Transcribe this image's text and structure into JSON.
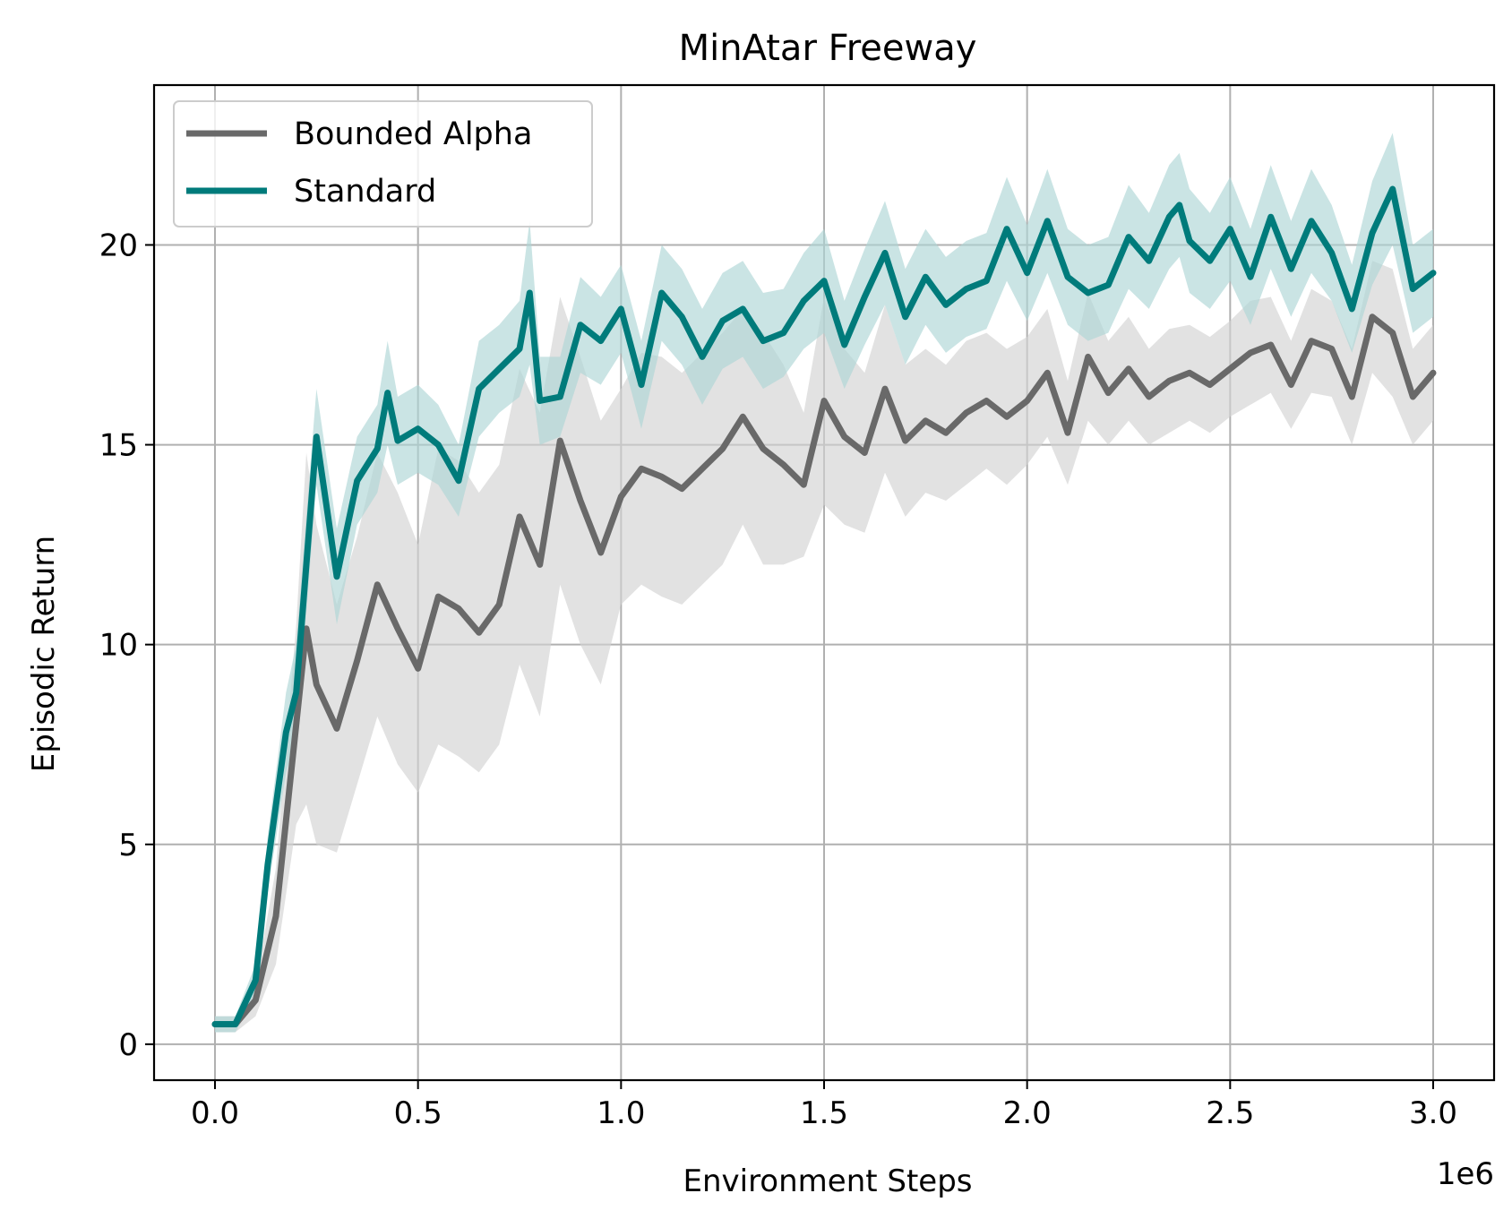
{
  "chart_data": {
    "type": "line",
    "title": "MinAtar Freeway",
    "xlabel": "Environment Steps",
    "ylabel": "Episodic Return",
    "x_offset_text": "1e6",
    "xlim": [
      -0.15,
      3.15
    ],
    "ylim": [
      -0.9,
      24.0
    ],
    "x_ticks": [
      0.0,
      0.5,
      1.0,
      1.5,
      2.0,
      2.5,
      3.0
    ],
    "x_tick_labels": [
      "0.0",
      "0.5",
      "1.0",
      "1.5",
      "2.0",
      "2.5",
      "3.0"
    ],
    "y_ticks": [
      0,
      5,
      10,
      15,
      20
    ],
    "y_tick_labels": [
      "0",
      "5",
      "10",
      "15",
      "20"
    ],
    "grid": true,
    "legend_position": "upper left",
    "series": [
      {
        "name": "Bounded Alpha",
        "color": "#696969",
        "band_color": "#d3d3d3",
        "x": [
          0.0,
          0.05,
          0.1,
          0.15,
          0.2,
          0.225,
          0.25,
          0.3,
          0.35,
          0.4,
          0.45,
          0.5,
          0.55,
          0.6,
          0.65,
          0.7,
          0.75,
          0.8,
          0.85,
          0.9,
          0.95,
          1.0,
          1.05,
          1.1,
          1.15,
          1.2,
          1.25,
          1.3,
          1.35,
          1.4,
          1.45,
          1.5,
          1.55,
          1.6,
          1.65,
          1.7,
          1.75,
          1.8,
          1.85,
          1.9,
          1.95,
          2.0,
          2.05,
          2.1,
          2.15,
          2.2,
          2.25,
          2.3,
          2.35,
          2.4,
          2.45,
          2.5,
          2.55,
          2.6,
          2.65,
          2.7,
          2.75,
          2.8,
          2.85,
          2.9,
          2.95,
          3.0
        ],
        "values": [
          0.5,
          0.5,
          1.1,
          3.2,
          8.0,
          10.4,
          9.0,
          7.9,
          9.6,
          11.5,
          10.4,
          9.4,
          11.2,
          10.9,
          10.3,
          11.0,
          13.2,
          12.0,
          15.1,
          13.6,
          12.3,
          13.7,
          14.4,
          14.2,
          13.9,
          14.4,
          14.9,
          15.7,
          14.9,
          14.5,
          14.0,
          16.1,
          15.2,
          14.8,
          16.4,
          15.1,
          15.6,
          15.3,
          15.8,
          16.1,
          15.7,
          16.1,
          16.8,
          15.3,
          17.2,
          16.3,
          16.9,
          16.2,
          16.6,
          16.8,
          16.5,
          16.9,
          17.3,
          17.5,
          16.5,
          17.6,
          17.4,
          16.2,
          18.2,
          17.8,
          16.2,
          16.8
        ],
        "band_lower": [
          0.3,
          0.3,
          0.7,
          2.0,
          5.5,
          6.0,
          5.0,
          4.8,
          6.5,
          8.2,
          7.0,
          6.3,
          7.5,
          7.2,
          6.8,
          7.5,
          9.5,
          8.2,
          11.5,
          10.0,
          9.0,
          11.0,
          11.5,
          11.2,
          11.0,
          11.5,
          12.0,
          13.0,
          12.0,
          12.0,
          12.2,
          13.5,
          13.0,
          12.8,
          14.3,
          13.2,
          13.8,
          13.6,
          14.0,
          14.4,
          14.0,
          14.5,
          15.2,
          14.0,
          15.6,
          15.0,
          15.6,
          15.0,
          15.3,
          15.6,
          15.3,
          15.7,
          16.0,
          16.3,
          15.4,
          16.3,
          16.2,
          15.0,
          16.8,
          16.2,
          15.0,
          15.6
        ],
        "band_upper": [
          0.7,
          0.7,
          1.5,
          4.4,
          10.5,
          14.8,
          13.0,
          11.0,
          12.7,
          14.8,
          13.8,
          12.5,
          14.9,
          14.6,
          13.8,
          14.5,
          16.9,
          15.8,
          18.7,
          17.2,
          15.6,
          16.4,
          17.3,
          17.2,
          16.8,
          17.3,
          17.8,
          18.4,
          17.8,
          17.0,
          15.8,
          18.7,
          17.4,
          16.8,
          18.5,
          17.0,
          17.4,
          17.0,
          17.6,
          17.8,
          17.4,
          17.7,
          18.4,
          16.6,
          18.8,
          17.6,
          18.2,
          17.4,
          17.9,
          18.0,
          17.7,
          18.1,
          18.6,
          18.7,
          17.6,
          18.9,
          18.6,
          17.4,
          19.6,
          19.4,
          17.4,
          18.0
        ]
      },
      {
        "name": "Standard",
        "color": "#007b7b",
        "band_color": "#aed6d6",
        "x": [
          0.0,
          0.05,
          0.1,
          0.13,
          0.175,
          0.2,
          0.25,
          0.3,
          0.35,
          0.4,
          0.425,
          0.45,
          0.5,
          0.55,
          0.6,
          0.65,
          0.7,
          0.75,
          0.775,
          0.8,
          0.85,
          0.9,
          0.95,
          1.0,
          1.05,
          1.1,
          1.15,
          1.2,
          1.25,
          1.3,
          1.35,
          1.4,
          1.45,
          1.5,
          1.55,
          1.6,
          1.65,
          1.7,
          1.75,
          1.8,
          1.85,
          1.9,
          1.95,
          2.0,
          2.05,
          2.1,
          2.15,
          2.2,
          2.25,
          2.3,
          2.35,
          2.375,
          2.4,
          2.45,
          2.5,
          2.55,
          2.6,
          2.65,
          2.7,
          2.75,
          2.8,
          2.85,
          2.9,
          2.95,
          3.0
        ],
        "values": [
          0.5,
          0.5,
          1.6,
          4.5,
          7.8,
          8.8,
          15.2,
          11.7,
          14.1,
          14.9,
          16.3,
          15.1,
          15.4,
          15.0,
          14.1,
          16.4,
          16.9,
          17.4,
          18.8,
          16.1,
          16.2,
          18.0,
          17.6,
          18.4,
          16.5,
          18.8,
          18.2,
          17.2,
          18.1,
          18.4,
          17.6,
          17.8,
          18.6,
          19.1,
          17.5,
          18.7,
          19.8,
          18.2,
          19.2,
          18.5,
          18.9,
          19.1,
          20.4,
          19.3,
          20.6,
          19.2,
          18.8,
          19.0,
          20.2,
          19.6,
          20.7,
          21.0,
          20.1,
          19.6,
          20.4,
          19.2,
          20.7,
          19.4,
          20.6,
          19.8,
          18.4,
          20.3,
          21.4,
          18.9,
          19.3
        ],
        "band_lower": [
          0.3,
          0.3,
          1.2,
          3.8,
          6.8,
          7.6,
          14.0,
          10.5,
          13.0,
          13.8,
          15.0,
          14.0,
          14.3,
          14.0,
          13.2,
          15.2,
          15.8,
          16.2,
          17.0,
          15.0,
          15.2,
          16.8,
          16.5,
          17.3,
          15.4,
          17.6,
          17.0,
          16.0,
          16.9,
          17.2,
          16.4,
          16.7,
          17.4,
          17.8,
          16.4,
          17.5,
          18.5,
          17.0,
          18.0,
          17.3,
          17.7,
          17.9,
          19.1,
          18.1,
          19.3,
          18.0,
          17.6,
          17.8,
          18.9,
          18.4,
          19.4,
          19.7,
          18.8,
          18.4,
          19.1,
          18.0,
          19.4,
          18.2,
          19.3,
          18.6,
          17.3,
          19.0,
          20.0,
          17.8,
          18.2
        ],
        "band_upper": [
          0.7,
          0.7,
          2.0,
          5.2,
          8.8,
          10.0,
          16.4,
          12.9,
          15.2,
          16.0,
          17.6,
          16.2,
          16.5,
          16.0,
          15.0,
          17.6,
          18.0,
          18.6,
          20.6,
          17.2,
          17.2,
          19.2,
          18.7,
          19.5,
          17.6,
          20.0,
          19.4,
          18.4,
          19.3,
          19.6,
          18.8,
          18.9,
          19.8,
          20.4,
          18.6,
          19.9,
          21.1,
          19.4,
          20.4,
          19.7,
          20.1,
          20.3,
          21.7,
          20.5,
          21.9,
          20.4,
          20.0,
          20.2,
          21.5,
          20.8,
          22.0,
          22.3,
          21.4,
          20.8,
          21.7,
          20.4,
          22.0,
          20.6,
          21.9,
          21.0,
          19.5,
          21.6,
          22.8,
          20.0,
          20.4
        ]
      }
    ]
  }
}
